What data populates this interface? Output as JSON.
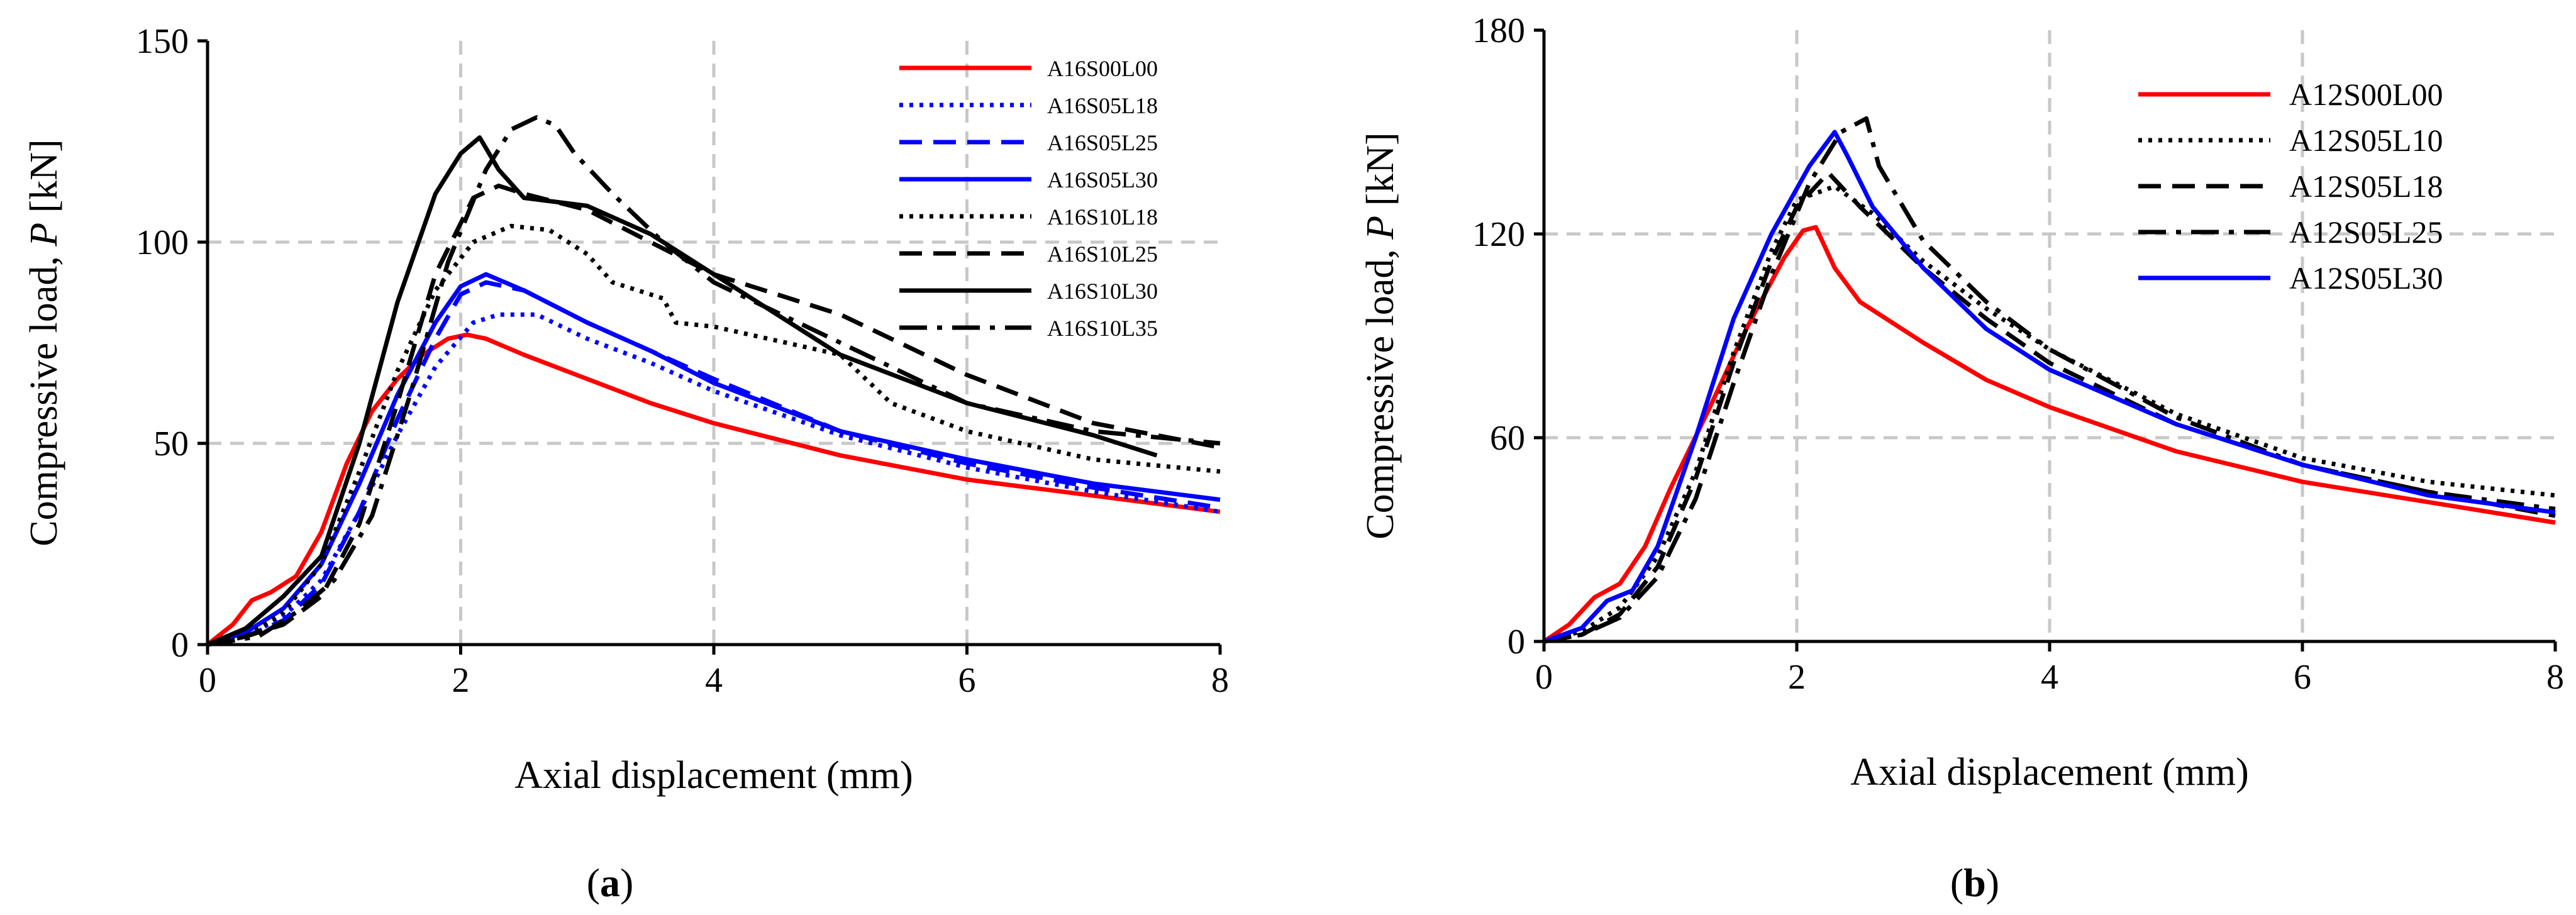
{
  "figure": {
    "panels": [
      {
        "id": "a",
        "open": "(",
        "letter": "a",
        "close": ")"
      },
      {
        "id": "b",
        "open": "(",
        "letter": "b",
        "close": ")"
      }
    ]
  },
  "colors": {
    "red": "#ff0000",
    "blue": "#0000ff",
    "black": "#000000",
    "grid": "#c8c8c8"
  },
  "chart_data": [
    {
      "id": "a",
      "type": "line",
      "title": "",
      "xlabel": "Axial displacement (mm)",
      "ylabel_prefix": "Compressive load, ",
      "ylabel_var": "P",
      "ylabel_suffix": " [kN]",
      "xlim": [
        0,
        8
      ],
      "ylim": [
        0,
        150
      ],
      "xticks": [
        0,
        2,
        4,
        6,
        8
      ],
      "yticks": [
        0,
        50,
        100,
        150
      ],
      "xtick_labels": [
        "0",
        "2",
        "4",
        "6",
        "8"
      ],
      "ytick_labels": [
        "0",
        "50",
        "100",
        "150"
      ],
      "grid": true,
      "legend_position": "top-right",
      "series": [
        {
          "name": "A16S00L00",
          "color": "#ff0000",
          "style": "solid",
          "x": [
            0,
            0.2,
            0.35,
            0.5,
            0.7,
            0.9,
            1.1,
            1.3,
            1.5,
            1.7,
            1.9,
            2.05,
            2.2,
            2.5,
            3,
            3.5,
            4,
            5,
            6,
            7,
            8
          ],
          "y": [
            0,
            5,
            11,
            13,
            17,
            28,
            45,
            58,
            66,
            72,
            76,
            77,
            76,
            72,
            66,
            60,
            55,
            47,
            41,
            37,
            33
          ]
        },
        {
          "name": "A16S05L18",
          "color": "#0000ff",
          "style": "dot",
          "x": [
            0,
            0.3,
            0.6,
            0.9,
            1.2,
            1.5,
            1.8,
            2.1,
            2.3,
            2.6,
            3,
            3.5,
            4,
            5,
            6,
            7,
            8
          ],
          "y": [
            0,
            2,
            7,
            16,
            33,
            52,
            69,
            80,
            82,
            82,
            76,
            70,
            63,
            52,
            44,
            38,
            33
          ]
        },
        {
          "name": "A16S05L25",
          "color": "#0000ff",
          "style": "dash",
          "x": [
            0,
            0.3,
            0.6,
            0.9,
            1.2,
            1.5,
            1.8,
            2.0,
            2.2,
            2.5,
            3,
            3.5,
            4,
            5,
            6,
            7,
            8
          ],
          "y": [
            0,
            2,
            6,
            15,
            33,
            56,
            76,
            87,
            90,
            88,
            80,
            73,
            66,
            53,
            45,
            39,
            34
          ]
        },
        {
          "name": "A16S05L30",
          "color": "#0000ff",
          "style": "solid",
          "x": [
            0,
            0.3,
            0.6,
            0.9,
            1.2,
            1.5,
            1.8,
            2.0,
            2.2,
            2.5,
            3,
            3.5,
            4,
            5,
            6,
            7,
            8
          ],
          "y": [
            0,
            3,
            9,
            20,
            40,
            62,
            80,
            89,
            92,
            88,
            80,
            73,
            65,
            53,
            46,
            40,
            36
          ]
        },
        {
          "name": "A16S10L18",
          "color": "#000000",
          "style": "dot",
          "x": [
            0,
            0.3,
            0.6,
            0.9,
            1.2,
            1.5,
            1.8,
            2.1,
            2.4,
            2.7,
            3.0,
            3.2,
            3.6,
            3.7,
            4,
            5,
            5.4,
            6,
            7,
            8
          ],
          "y": [
            0,
            2,
            8,
            20,
            43,
            68,
            88,
            100,
            104,
            103,
            97,
            90,
            86,
            80,
            79,
            72,
            60,
            53,
            46,
            43
          ]
        },
        {
          "name": "A16S10L25",
          "color": "#000000",
          "style": "dash",
          "x": [
            0,
            0.3,
            0.6,
            0.9,
            1.2,
            1.5,
            1.8,
            2.1,
            2.3,
            2.5,
            3,
            3.5,
            4,
            5,
            6,
            7,
            8
          ],
          "y": [
            0,
            2,
            5,
            12,
            30,
            60,
            92,
            111,
            114,
            112,
            108,
            100,
            92,
            82,
            67,
            55,
            49
          ]
        },
        {
          "name": "A16S10L30",
          "color": "#000000",
          "style": "solid",
          "x": [
            0,
            0.3,
            0.6,
            0.9,
            1.2,
            1.5,
            1.8,
            2.0,
            2.15,
            2.3,
            2.5,
            3,
            3.5,
            4,
            5,
            6,
            7,
            7.5
          ],
          "y": [
            0,
            4,
            12,
            22,
            50,
            85,
            112,
            122,
            126,
            118,
            111,
            109,
            102,
            92,
            72,
            60,
            52,
            47
          ]
        },
        {
          "name": "A16S10L35",
          "color": "#000000",
          "style": "dashdot",
          "x": [
            0,
            0.4,
            0.7,
            1.0,
            1.3,
            1.6,
            1.9,
            2.2,
            2.4,
            2.6,
            2.75,
            2.9,
            3.2,
            3.6,
            4,
            5,
            6,
            7,
            8
          ],
          "y": [
            0,
            2,
            8,
            16,
            32,
            62,
            95,
            118,
            128,
            131,
            129,
            122,
            112,
            100,
            90,
            75,
            60,
            53,
            50
          ]
        }
      ]
    },
    {
      "id": "b",
      "type": "line",
      "title": "",
      "xlabel": "Axial displacement (mm)",
      "ylabel_prefix": "Compressive load, ",
      "ylabel_var": "P",
      "ylabel_suffix": " [kN]",
      "xlim": [
        0,
        8
      ],
      "ylim": [
        0,
        180
      ],
      "xticks": [
        0,
        2,
        4,
        6,
        8
      ],
      "yticks": [
        0,
        60,
        120,
        180
      ],
      "xtick_labels": [
        "0",
        "2",
        "4",
        "6",
        "8"
      ],
      "ytick_labels": [
        "0",
        "60",
        "120",
        "180"
      ],
      "grid": true,
      "legend_position": "top-right",
      "series": [
        {
          "name": "A12S00L00",
          "color": "#ff0000",
          "style": "solid",
          "x": [
            0,
            0.2,
            0.4,
            0.6,
            0.8,
            1.0,
            1.3,
            1.6,
            1.9,
            2.05,
            2.15,
            2.3,
            2.5,
            3,
            3.5,
            4,
            5,
            6,
            7,
            8
          ],
          "y": [
            0,
            5,
            13,
            17,
            28,
            45,
            68,
            92,
            113,
            121,
            122,
            110,
            100,
            88,
            77,
            69,
            56,
            47,
            41,
            35
          ]
        },
        {
          "name": "A12S05L10",
          "color": "#000000",
          "style": "dot",
          "x": [
            0,
            0.3,
            0.6,
            0.9,
            1.2,
            1.5,
            1.8,
            2.0,
            2.3,
            2.6,
            3,
            3.5,
            4,
            5,
            6,
            7,
            8
          ],
          "y": [
            0,
            3,
            10,
            25,
            50,
            85,
            115,
            130,
            134,
            126,
            112,
            98,
            86,
            67,
            54,
            47,
            43
          ]
        },
        {
          "name": "A12S05L18",
          "color": "#000000",
          "style": "dash",
          "x": [
            0,
            0.3,
            0.6,
            0.9,
            1.2,
            1.5,
            1.8,
            2.0,
            2.25,
            2.5,
            3,
            3.5,
            4,
            5,
            6,
            7,
            8
          ],
          "y": [
            0,
            2,
            8,
            22,
            48,
            82,
            112,
            128,
            138,
            128,
            110,
            95,
            82,
            64,
            52,
            44,
            37
          ]
        },
        {
          "name": "A12S05L25",
          "color": "#000000",
          "style": "dashdot",
          "x": [
            0,
            0.3,
            0.6,
            0.9,
            1.2,
            1.5,
            1.8,
            2.1,
            2.35,
            2.55,
            2.65,
            3,
            3.5,
            4,
            5,
            6,
            7,
            8
          ],
          "y": [
            0,
            2,
            7,
            19,
            42,
            76,
            108,
            135,
            150,
            154,
            140,
            118,
            100,
            86,
            66,
            52,
            44,
            39
          ]
        },
        {
          "name": "A12S05L30",
          "color": "#0000ff",
          "style": "solid",
          "x": [
            0,
            0.3,
            0.5,
            0.7,
            0.9,
            1.2,
            1.5,
            1.8,
            2.1,
            2.3,
            2.4,
            2.6,
            3,
            3.5,
            4,
            5,
            6,
            7,
            8
          ],
          "y": [
            0,
            4,
            12,
            15,
            28,
            60,
            95,
            120,
            140,
            150,
            143,
            128,
            110,
            92,
            80,
            64,
            52,
            43,
            38
          ]
        }
      ]
    }
  ]
}
